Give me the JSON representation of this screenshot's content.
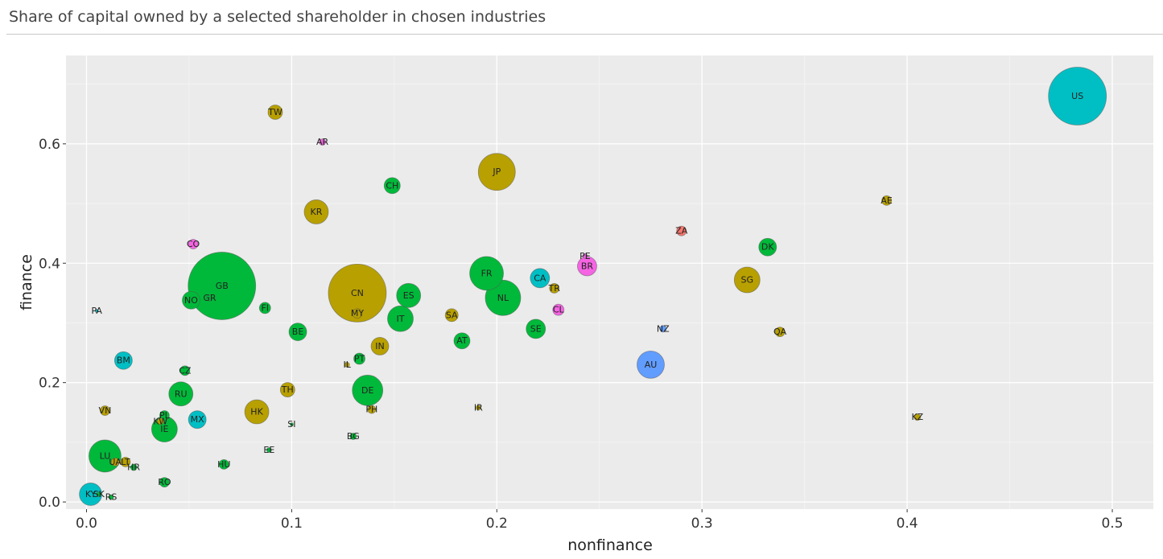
{
  "header": {
    "title": "Share of capital owned by a selected shareholder in chosen industries"
  },
  "chart_data": {
    "type": "scatter",
    "title": "Share of capital owned by a selected shareholder in chosen industries",
    "xlabel": "nonfinance",
    "ylabel": "finance",
    "xlim": [
      -0.01,
      0.52
    ],
    "ylim": [
      -0.012,
      0.748
    ],
    "x_ticks": [
      0.0,
      0.1,
      0.2,
      0.3,
      0.4,
      0.5
    ],
    "x_tick_labels": [
      "0.0",
      "0.1",
      "0.2",
      "0.3",
      "0.4",
      "0.5"
    ],
    "y_ticks": [
      0.0,
      0.2,
      0.4,
      0.6
    ],
    "y_tick_labels": [
      "0.0",
      "0.2",
      "0.4",
      "0.6"
    ],
    "grid": true,
    "background": "#ebebeb",
    "colors": {
      "olive": "#b8a000",
      "green": "#00b93a",
      "teal": "#00bfc4",
      "blue": "#619cff",
      "pink": "#f564e3",
      "red": "#f8766d"
    },
    "points": [
      {
        "label": "US",
        "x": 0.483,
        "y": 0.68,
        "size": 36,
        "color": "#00bfc4"
      },
      {
        "label": "TW",
        "x": 0.092,
        "y": 0.653,
        "size": 9,
        "color": "#b8a000"
      },
      {
        "label": "AR",
        "x": 0.115,
        "y": 0.603,
        "size": 4,
        "color": "#f564e3"
      },
      {
        "label": "JP",
        "x": 0.2,
        "y": 0.553,
        "size": 23,
        "color": "#b8a000"
      },
      {
        "label": "CH",
        "x": 0.149,
        "y": 0.53,
        "size": 10,
        "color": "#00b93a"
      },
      {
        "label": "AE",
        "x": 0.39,
        "y": 0.505,
        "size": 6,
        "color": "#b8a000"
      },
      {
        "label": "KR",
        "x": 0.112,
        "y": 0.486,
        "size": 15,
        "color": "#b8a000"
      },
      {
        "label": "ZA",
        "x": 0.29,
        "y": 0.454,
        "size": 6,
        "color": "#f8766d"
      },
      {
        "label": "CO",
        "x": 0.052,
        "y": 0.432,
        "size": 6,
        "color": "#f564e3"
      },
      {
        "label": "DK",
        "x": 0.332,
        "y": 0.427,
        "size": 11,
        "color": "#00b93a"
      },
      {
        "label": "PE",
        "x": 0.243,
        "y": 0.412,
        "size": 3,
        "color": "#f564e3"
      },
      {
        "label": "BR",
        "x": 0.244,
        "y": 0.395,
        "size": 12,
        "color": "#f564e3"
      },
      {
        "label": "FR",
        "x": 0.195,
        "y": 0.383,
        "size": 21,
        "color": "#00b93a"
      },
      {
        "label": "CA",
        "x": 0.221,
        "y": 0.375,
        "size": 12,
        "color": "#00bfc4"
      },
      {
        "label": "SG",
        "x": 0.322,
        "y": 0.372,
        "size": 16,
        "color": "#b8a000"
      },
      {
        "label": "GB",
        "x": 0.066,
        "y": 0.362,
        "size": 42,
        "color": "#00b93a"
      },
      {
        "label": "CN",
        "x": 0.132,
        "y": 0.35,
        "size": 36,
        "color": "#b8a000"
      },
      {
        "label": "TR",
        "x": 0.228,
        "y": 0.358,
        "size": 6,
        "color": "#b8a000"
      },
      {
        "label": "NL",
        "x": 0.203,
        "y": 0.342,
        "size": 22,
        "color": "#00b93a"
      },
      {
        "label": "ES",
        "x": 0.157,
        "y": 0.346,
        "size": 15,
        "color": "#00b93a"
      },
      {
        "label": "GR",
        "x": 0.06,
        "y": 0.342,
        "size": 4,
        "color": "#00b93a"
      },
      {
        "label": "NO",
        "x": 0.051,
        "y": 0.338,
        "size": 11,
        "color": "#00b93a"
      },
      {
        "label": "FI",
        "x": 0.087,
        "y": 0.325,
        "size": 7,
        "color": "#00b93a"
      },
      {
        "label": "CL",
        "x": 0.23,
        "y": 0.322,
        "size": 7,
        "color": "#f564e3"
      },
      {
        "label": "PA",
        "x": 0.005,
        "y": 0.32,
        "size": 2,
        "color": "#00bfc4"
      },
      {
        "label": "MY",
        "x": 0.132,
        "y": 0.316,
        "size": 6,
        "color": "#b8a000"
      },
      {
        "label": "SA",
        "x": 0.178,
        "y": 0.313,
        "size": 8,
        "color": "#b8a000"
      },
      {
        "label": "IT",
        "x": 0.153,
        "y": 0.307,
        "size": 16,
        "color": "#00b93a"
      },
      {
        "label": "SE",
        "x": 0.219,
        "y": 0.29,
        "size": 12,
        "color": "#00b93a"
      },
      {
        "label": "NZ",
        "x": 0.281,
        "y": 0.29,
        "size": 4,
        "color": "#619cff"
      },
      {
        "label": "QA",
        "x": 0.338,
        "y": 0.285,
        "size": 6,
        "color": "#b8a000"
      },
      {
        "label": "BE",
        "x": 0.103,
        "y": 0.285,
        "size": 11,
        "color": "#00b93a"
      },
      {
        "label": "AT",
        "x": 0.183,
        "y": 0.27,
        "size": 10,
        "color": "#00b93a"
      },
      {
        "label": "IN",
        "x": 0.143,
        "y": 0.261,
        "size": 11,
        "color": "#b8a000"
      },
      {
        "label": "PT",
        "x": 0.133,
        "y": 0.24,
        "size": 7,
        "color": "#00b93a"
      },
      {
        "label": "BM",
        "x": 0.018,
        "y": 0.237,
        "size": 11,
        "color": "#00bfc4"
      },
      {
        "label": "AU",
        "x": 0.275,
        "y": 0.23,
        "size": 17,
        "color": "#619cff"
      },
      {
        "label": "IL",
        "x": 0.127,
        "y": 0.23,
        "size": 3,
        "color": "#b8a000"
      },
      {
        "label": "CZ",
        "x": 0.048,
        "y": 0.22,
        "size": 6,
        "color": "#00b93a"
      },
      {
        "label": "TH",
        "x": 0.098,
        "y": 0.188,
        "size": 9,
        "color": "#b8a000"
      },
      {
        "label": "DE",
        "x": 0.137,
        "y": 0.187,
        "size": 19,
        "color": "#00b93a"
      },
      {
        "label": "RU",
        "x": 0.046,
        "y": 0.181,
        "size": 15,
        "color": "#00b93a"
      },
      {
        "label": "IR",
        "x": 0.191,
        "y": 0.158,
        "size": 3,
        "color": "#b8a000"
      },
      {
        "label": "PH",
        "x": 0.139,
        "y": 0.155,
        "size": 5,
        "color": "#b8a000"
      },
      {
        "label": "VN",
        "x": 0.009,
        "y": 0.153,
        "size": 6,
        "color": "#b8a000"
      },
      {
        "label": "HK",
        "x": 0.083,
        "y": 0.151,
        "size": 15,
        "color": "#b8a000"
      },
      {
        "label": "PL",
        "x": 0.038,
        "y": 0.145,
        "size": 6,
        "color": "#00b93a"
      },
      {
        "label": "KZ",
        "x": 0.405,
        "y": 0.142,
        "size": 4,
        "color": "#b8a000"
      },
      {
        "label": "MX",
        "x": 0.054,
        "y": 0.138,
        "size": 11,
        "color": "#00bfc4"
      },
      {
        "label": "KW",
        "x": 0.036,
        "y": 0.135,
        "size": 4,
        "color": "#b8a000"
      },
      {
        "label": "SI",
        "x": 0.1,
        "y": 0.13,
        "size": 2,
        "color": "#00b93a"
      },
      {
        "label": "IE",
        "x": 0.038,
        "y": 0.122,
        "size": 16,
        "color": "#00b93a"
      },
      {
        "label": "BG",
        "x": 0.13,
        "y": 0.11,
        "size": 4,
        "color": "#00b93a"
      },
      {
        "label": "EE",
        "x": 0.089,
        "y": 0.087,
        "size": 3,
        "color": "#00b93a"
      },
      {
        "label": "LU",
        "x": 0.009,
        "y": 0.077,
        "size": 20,
        "color": "#00b93a"
      },
      {
        "label": "UA",
        "x": 0.014,
        "y": 0.067,
        "size": 5,
        "color": "#b8a000"
      },
      {
        "label": "LT",
        "x": 0.019,
        "y": 0.067,
        "size": 6,
        "color": "#b8a000"
      },
      {
        "label": "HU",
        "x": 0.067,
        "y": 0.063,
        "size": 6,
        "color": "#00b93a"
      },
      {
        "label": "HR",
        "x": 0.023,
        "y": 0.058,
        "size": 4,
        "color": "#00b93a"
      },
      {
        "label": "RO",
        "x": 0.038,
        "y": 0.033,
        "size": 6,
        "color": "#00b93a"
      },
      {
        "label": "KY",
        "x": 0.002,
        "y": 0.013,
        "size": 14,
        "color": "#00bfc4"
      },
      {
        "label": "SK",
        "x": 0.006,
        "y": 0.013,
        "size": 3,
        "color": "#00b93a"
      },
      {
        "label": "RS",
        "x": 0.012,
        "y": 0.008,
        "size": 3,
        "color": "#00b93a"
      }
    ]
  }
}
